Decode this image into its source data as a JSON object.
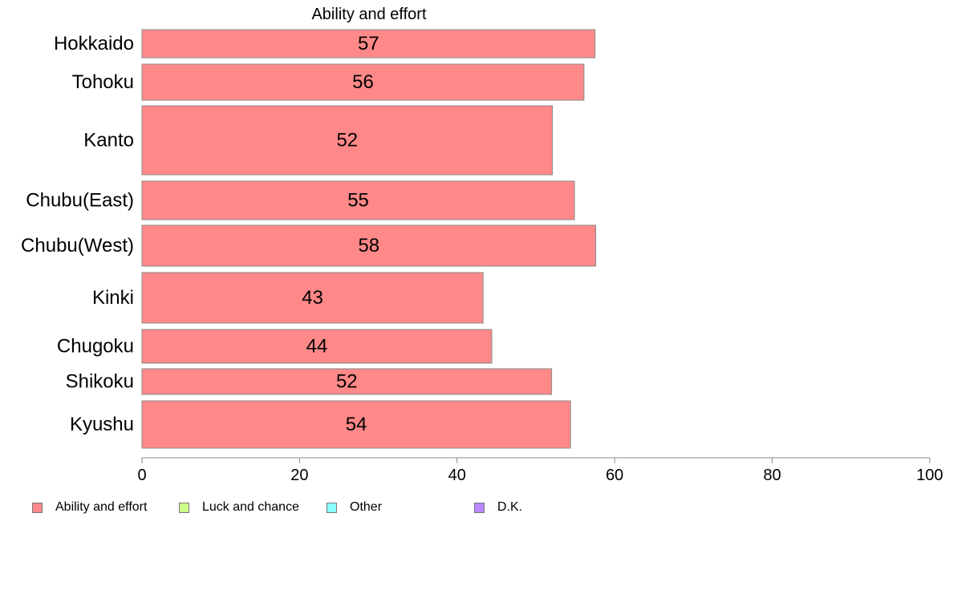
{
  "chart_data": {
    "type": "bar",
    "orientation": "horizontal",
    "title": "Ability and effort",
    "categories": [
      "Hokkaido",
      "Tohoku",
      "Kanto",
      "Chubu(East)",
      "Chubu(West)",
      "Kinki",
      "Chugoku",
      "Shikoku",
      "Kyushu"
    ],
    "series": [
      {
        "name": "Ability and effort",
        "values": [
          57.5,
          56.1,
          52.1,
          54.9,
          57.6,
          43.3,
          44.4,
          52.0,
          54.4
        ],
        "labels": [
          "57",
          "56",
          "52",
          "55",
          "58",
          "43",
          "44",
          "52",
          "54"
        ],
        "color": "#ff8888"
      }
    ],
    "xlim": [
      0,
      100
    ],
    "x_ticks": [
      "0",
      "20",
      "40",
      "60",
      "80",
      "100"
    ],
    "grid": false,
    "legend": {
      "placement": "bottom",
      "items": [
        {
          "label": "Ability and effort",
          "color": "#ff8888"
        },
        {
          "label": "Luck and chance",
          "color": "#ccff88"
        },
        {
          "label": "Other",
          "color": "#88ffff"
        },
        {
          "label": "D.K.",
          "color": "#bb88ff"
        }
      ]
    }
  }
}
